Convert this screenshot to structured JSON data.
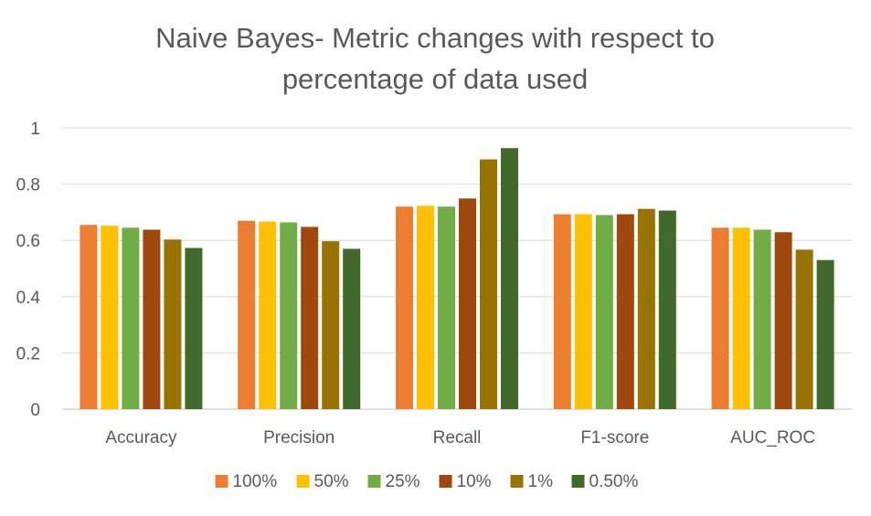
{
  "chart_data": {
    "type": "bar",
    "title_lines": [
      "Naive Bayes- Metric changes with respect to",
      "percentage of data used"
    ],
    "categories": [
      "Accuracy",
      "Precision",
      "Recall",
      "F1-score",
      "AUC_ROC"
    ],
    "series": [
      {
        "name": "100%",
        "color": "#ED7D31",
        "values": [
          0.655,
          0.67,
          0.72,
          0.693,
          0.645
        ]
      },
      {
        "name": "50%",
        "color": "#FFC000",
        "values": [
          0.652,
          0.667,
          0.723,
          0.693,
          0.645
        ]
      },
      {
        "name": "25%",
        "color": "#70AD47",
        "values": [
          0.645,
          0.664,
          0.72,
          0.69,
          0.638
        ]
      },
      {
        "name": "10%",
        "color": "#9E480E",
        "values": [
          0.638,
          0.648,
          0.749,
          0.693,
          0.629
        ]
      },
      {
        "name": "1%",
        "color": "#997300",
        "values": [
          0.603,
          0.597,
          0.888,
          0.712,
          0.567
        ]
      },
      {
        "name": "0.50%",
        "color": "#43682B",
        "values": [
          0.573,
          0.57,
          0.928,
          0.706,
          0.53
        ]
      }
    ],
    "ylim": [
      0,
      1
    ],
    "yticks": [
      "0",
      "0.2",
      "0.4",
      "0.6",
      "0.8",
      "1"
    ],
    "ytick_values": [
      0,
      0.2,
      0.4,
      0.6,
      0.8,
      1
    ],
    "grid": true,
    "legend_position": "bottom"
  }
}
